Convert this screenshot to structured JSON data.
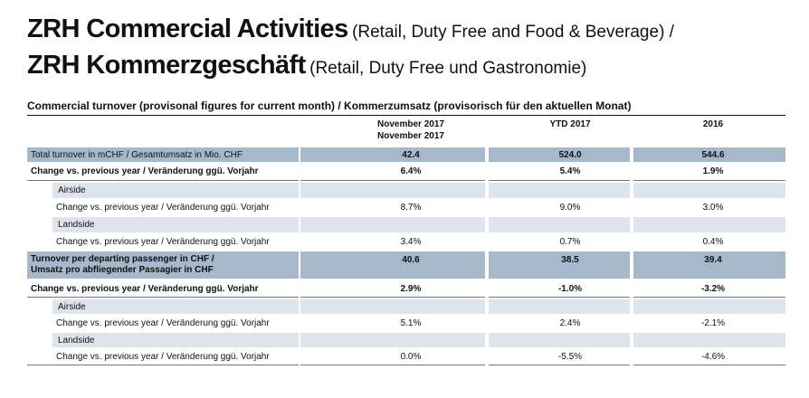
{
  "title_en_main": "ZRH Commercial Activities",
  "title_en_sub": "(Retail, Duty Free and Food & Beverage) /",
  "title_de_main": "ZRH Kommerzgeschäft",
  "title_de_sub": "(Retail, Duty Free und Gastronomie)",
  "table_title": "Commercial turnover (provisonal figures for current month) / Kommerzumsatz (provisorisch für den aktuellen Monat)",
  "columns": {
    "c1_line1": "November 2017",
    "c1_line2": "November 2017",
    "c2": "YTD 2017",
    "c3": "2016"
  },
  "rows": [
    {
      "label": "Total turnover in mCHF / Gesamtumsatz in Mio. CHF",
      "c1": "42.4",
      "c2": "524.0",
      "c3": "544.6"
    },
    {
      "label": "Change vs. previous year / Veränderung ggü. Vorjahr",
      "c1": "6.4%",
      "c2": "5.4%",
      "c3": "1.9%"
    },
    {
      "label": "Airside"
    },
    {
      "label": "Change vs. previous year / Veränderung ggü. Vorjahr",
      "c1": "8.7%",
      "c2": "9.0%",
      "c3": "3.0%"
    },
    {
      "label": "Landside"
    },
    {
      "label": "Change vs. previous year / Veränderung ggü. Vorjahr",
      "c1": "3.4%",
      "c2": "0.7%",
      "c3": "0.4%"
    },
    {
      "label_line1": "Turnover per departing passenger in CHF /",
      "label_line2": "Umsatz pro abfliegender Passagier in CHF",
      "c1": "40.6",
      "c2": "38.5",
      "c3": "39.4"
    },
    {
      "label": "Change vs. previous year / Veränderung ggü. Vorjahr",
      "c1": "2.9%",
      "c2": "-1.0%",
      "c3": "-3.2%"
    },
    {
      "label": "Airside"
    },
    {
      "label": "Change vs. previous year / Veränderung ggü. Vorjahr",
      "c1": "5.1%",
      "c2": "2.4%",
      "c3": "-2.1%"
    },
    {
      "label": "Landside"
    },
    {
      "label": "Change vs. previous year / Veränderung ggü. Vorjahr",
      "c1": "0.0%",
      "c2": "-5.5%",
      "c3": "-4.6%"
    }
  ]
}
